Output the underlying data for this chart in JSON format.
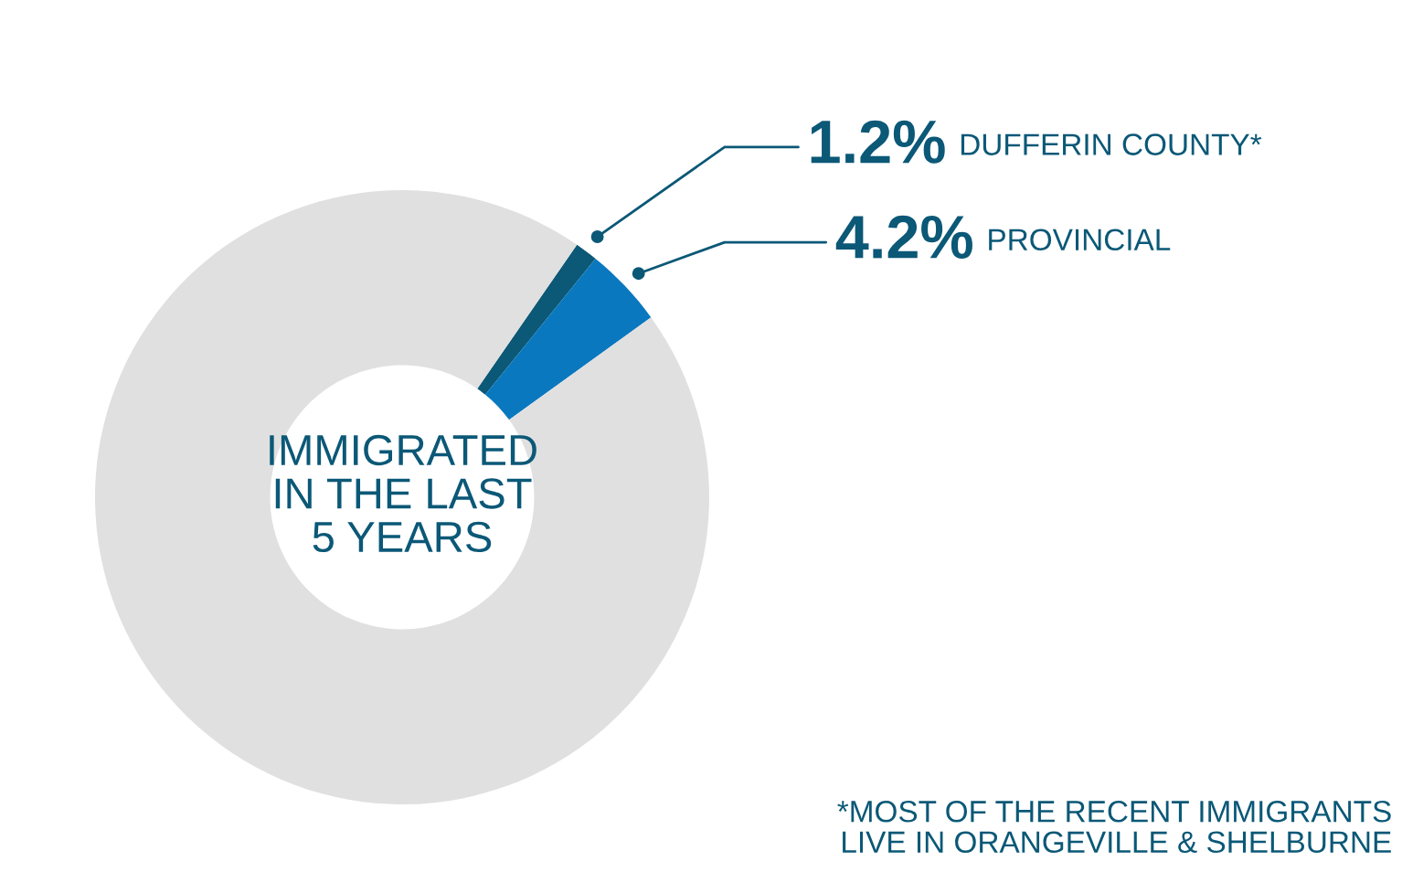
{
  "chart_data": {
    "type": "donut",
    "categories": [
      "DUFFERIN COUNTY*",
      "PROVINCIAL",
      null
    ],
    "values": [
      1.2,
      4.2,
      94.6
    ],
    "colors": [
      "#0b5877",
      "#0a78bf",
      "#e0e0e0"
    ],
    "value_labels": [
      "1.2%",
      "4.2%",
      null
    ],
    "annotations": [
      "IMMIGRATED\nIN THE LAST\n5 YEARS",
      "*MOST OF THE RECENT IMMIGRANTS\nLIVE IN ORANGEVILLE & SHELBURNE"
    ],
    "legend": false
  }
}
